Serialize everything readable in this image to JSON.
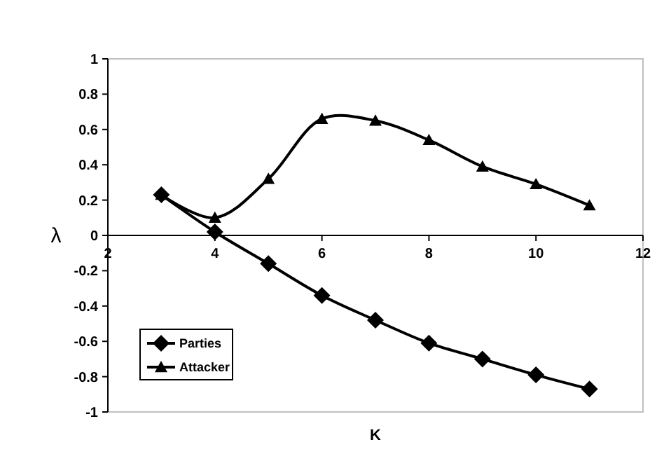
{
  "chart_data": {
    "type": "line",
    "xlabel": "K",
    "ylabel": "λ",
    "x": [
      3,
      4,
      5,
      6,
      7,
      8,
      9,
      10,
      11
    ],
    "series": [
      {
        "name": "Parties",
        "color": "#000000",
        "marker": "diamond",
        "values": [
          0.23,
          0.02,
          -0.16,
          -0.34,
          -0.48,
          -0.61,
          -0.7,
          -0.79,
          -0.87
        ]
      },
      {
        "name": "Attacker",
        "color": "#000000",
        "marker": "triangle",
        "values": [
          0.23,
          0.1,
          0.32,
          0.66,
          0.65,
          0.54,
          0.39,
          0.29,
          0.17
        ]
      }
    ],
    "xlim": [
      2,
      12
    ],
    "xticks": [
      2,
      4,
      6,
      8,
      10,
      12
    ],
    "ylim": [
      -1,
      1
    ],
    "yticks": [
      -1,
      -0.8,
      -0.6,
      -0.4,
      -0.2,
      0,
      0.2,
      0.4,
      0.6,
      0.8,
      1
    ],
    "grid": false,
    "legend": "bottom left",
    "line_style": "solid"
  }
}
